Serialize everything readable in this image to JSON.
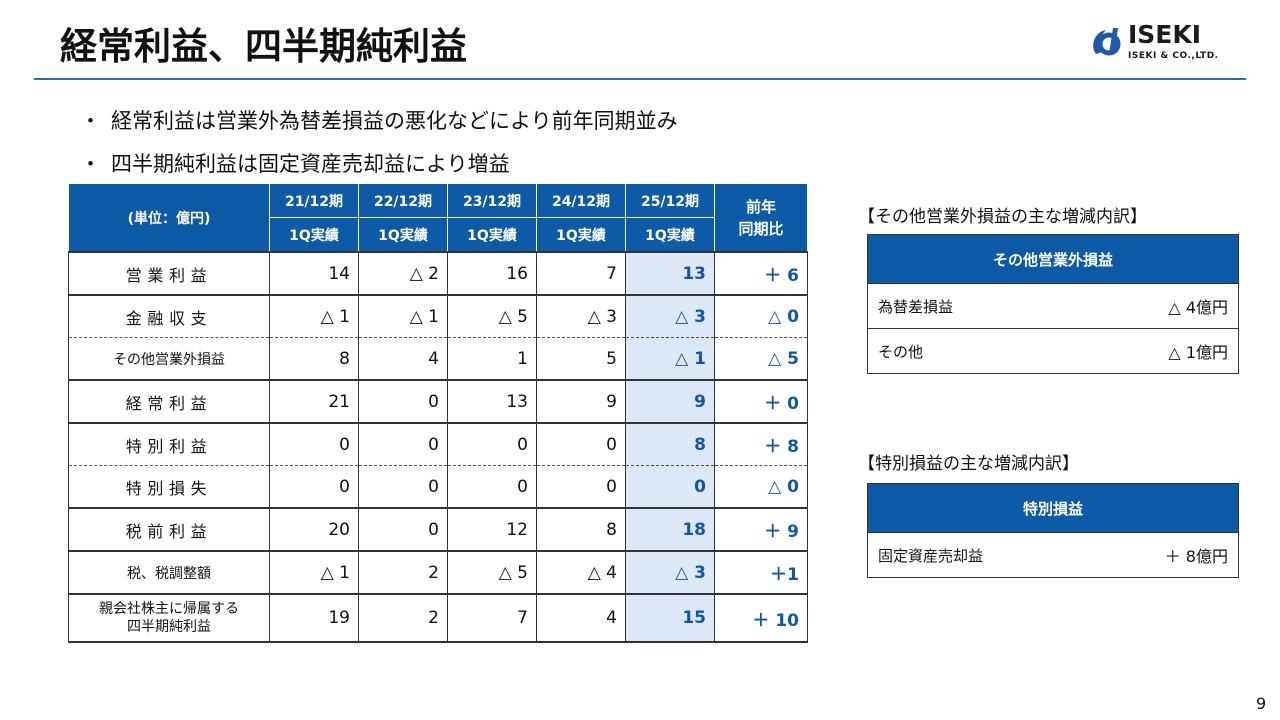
{
  "title": "経常利益、四半期純利益",
  "logo": {
    "name": "ISEKI",
    "sub": "ISEKI & CO.,LTD."
  },
  "bullets": [
    "経常利益は営業外為替差損益の悪化などにより前年同期並み",
    "四半期純利益は固定資産売却益により増益"
  ],
  "table": {
    "unit_label": "(単位：億円)",
    "periods": [
      "21/12期",
      "22/12期",
      "23/12期",
      "24/12期",
      "25/12期"
    ],
    "period_sub": "1Q実績",
    "yoy_header_1": "前年",
    "yoy_header_2": "同期比",
    "rows": [
      {
        "label": "営業利益",
        "values": [
          "14",
          "△ 2",
          "16",
          "7",
          "13"
        ],
        "yoy": "＋ 6"
      },
      {
        "label": "金融収支",
        "values": [
          "△ 1",
          "△ 1",
          "△ 5",
          "△ 3",
          "△ 3"
        ],
        "yoy": "△ 0"
      },
      {
        "label": "その他営業外損益",
        "values": [
          "8",
          "4",
          "1",
          "5",
          "△ 1"
        ],
        "yoy": "△ 5"
      },
      {
        "label": "経常利益",
        "values": [
          "21",
          "0",
          "13",
          "9",
          "9"
        ],
        "yoy": "＋ 0"
      },
      {
        "label": "特別利益",
        "values": [
          "0",
          "0",
          "0",
          "0",
          "8"
        ],
        "yoy": "＋ 8"
      },
      {
        "label": "特別損失",
        "values": [
          "0",
          "0",
          "0",
          "0",
          "0"
        ],
        "yoy": "△ 0"
      },
      {
        "label": "税前利益",
        "values": [
          "20",
          "0",
          "12",
          "8",
          "18"
        ],
        "yoy": "＋ 9"
      },
      {
        "label": "税、税調整額",
        "values": [
          "△ 1",
          "2",
          "△ 5",
          "△ 4",
          "△ 3"
        ],
        "yoy": "＋1"
      },
      {
        "label_line1": "親会社株主に帰属する",
        "label_line2": "四半期純利益",
        "values": [
          "19",
          "2",
          "7",
          "4",
          "15"
        ],
        "yoy": "＋ 10"
      }
    ]
  },
  "other_breakdown": {
    "title": "【その他営業外損益の主な増減内訳】",
    "header": "その他営業外損益",
    "items": [
      {
        "label": "為替差損益",
        "value": "△ 4億円"
      },
      {
        "label": "その他",
        "value": "△ 1億円"
      }
    ]
  },
  "special_breakdown": {
    "title": "【特別損益の主な増減内訳】",
    "header": "特別損益",
    "items": [
      {
        "label": "固定資産売却益",
        "value": "＋ 8億円"
      }
    ]
  },
  "page_number": "9",
  "colors": {
    "header_blue": "#0d5aa7",
    "highlight_bg": "#dce8f5",
    "highlight_text": "#1257a6",
    "rule": "#2f6eb0"
  }
}
